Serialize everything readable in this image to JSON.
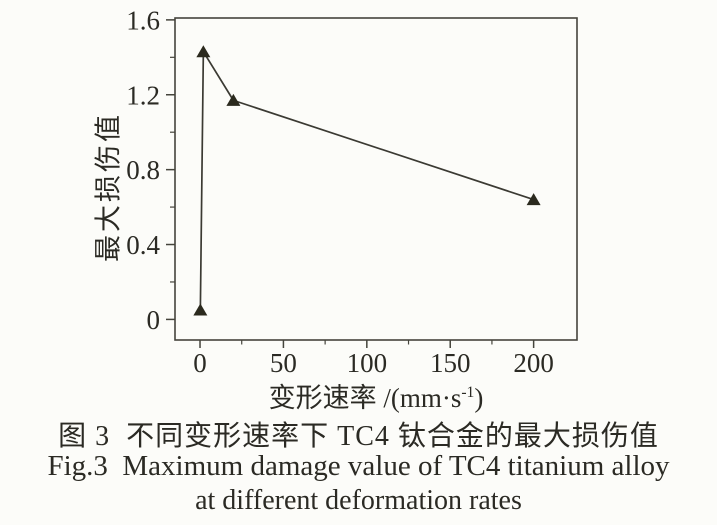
{
  "figure": {
    "caption_zh": "图 3  不同变形速率下 TC4 钛合金的最大损伤值",
    "caption_en_line1": "Fig.3  Maximum damage value of TC4 titanium alloy",
    "caption_en_line2": "at different deformation rates"
  },
  "chart_data": {
    "type": "line",
    "title": "",
    "ylabel": "最大损伤值",
    "xlabel_prefix": "变形速率 /(mm·s",
    "xlabel_sup": "-1",
    "xlabel_suffix": ")",
    "series": [
      {
        "name": "maximum-damage-value",
        "marker": "triangle",
        "points": [
          {
            "x": 0.2,
            "y": 0.05
          },
          {
            "x": 2,
            "y": 1.43
          },
          {
            "x": 20,
            "y": 1.17
          },
          {
            "x": 200,
            "y": 0.64
          }
        ]
      }
    ],
    "x_ticks": [
      0,
      50,
      100,
      150,
      200
    ],
    "x_minor_ticks": [
      25,
      75,
      125,
      175
    ],
    "y_ticks": [
      0,
      0.4,
      0.8,
      1.2,
      1.6
    ],
    "y_minor_ticks": [
      0.2,
      0.6,
      1.0,
      1.4
    ],
    "xlim": [
      -15,
      226
    ],
    "ylim": [
      -0.11,
      1.61
    ],
    "grid": false,
    "legend": false,
    "colors": {
      "line": "#3b3a33",
      "marker": "#2b2a1e",
      "axis": "#45443c",
      "text": "#2b2a24",
      "background": "#fcfcf9"
    }
  }
}
